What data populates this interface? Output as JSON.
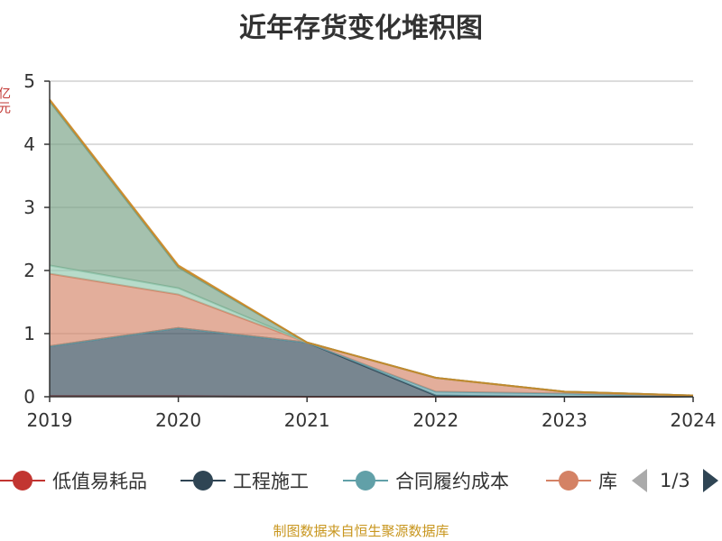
{
  "chart_data": {
    "type": "area",
    "stacked": true,
    "title": "近年存货变化堆积图",
    "y_unit": "亿元",
    "xlabel": "",
    "ylabel": "",
    "x": [
      "2019",
      "2020",
      "2021",
      "2022",
      "2023",
      "2024"
    ],
    "ylim": [
      0,
      5
    ],
    "yticks": [
      0,
      1,
      2,
      3,
      4,
      5
    ],
    "grid": true,
    "series": [
      {
        "name": "低值易耗品",
        "color": "#c23531",
        "values": [
          0.01,
          0.01,
          0.0,
          0.0,
          0.0,
          0.0
        ]
      },
      {
        "name": "工程施工",
        "color": "#2f4554",
        "values": [
          0.79,
          1.08,
          0.86,
          0.02,
          0.0,
          0.0
        ]
      },
      {
        "name": "合同履约成本",
        "color": "#61a0a8",
        "values": [
          0.0,
          0.0,
          0.0,
          0.06,
          0.05,
          0.0
        ]
      },
      {
        "name": "库存商品",
        "color": "#d48265",
        "values": [
          1.15,
          0.53,
          0.0,
          0.22,
          0.03,
          0.02
        ]
      },
      {
        "name": "",
        "color": "#91c7ae",
        "values": [
          0.13,
          0.1,
          0.0,
          0.0,
          0.0,
          0.0
        ]
      },
      {
        "name": "",
        "color": "#749f83",
        "values": [
          2.6,
          0.33,
          0.0,
          0.0,
          0.0,
          0.0
        ]
      },
      {
        "name": "",
        "color": "#ca8622",
        "values": [
          0.03,
          0.03,
          0.0,
          0.0,
          0.0,
          0.0
        ]
      }
    ],
    "legend_position": "bottom",
    "legend_visible_labels": [
      "低值易耗品",
      "工程施工",
      "合同履约成本",
      "库"
    ],
    "legend_page": "1/3"
  },
  "source_note": "制图数据来自恒生聚源数据库"
}
